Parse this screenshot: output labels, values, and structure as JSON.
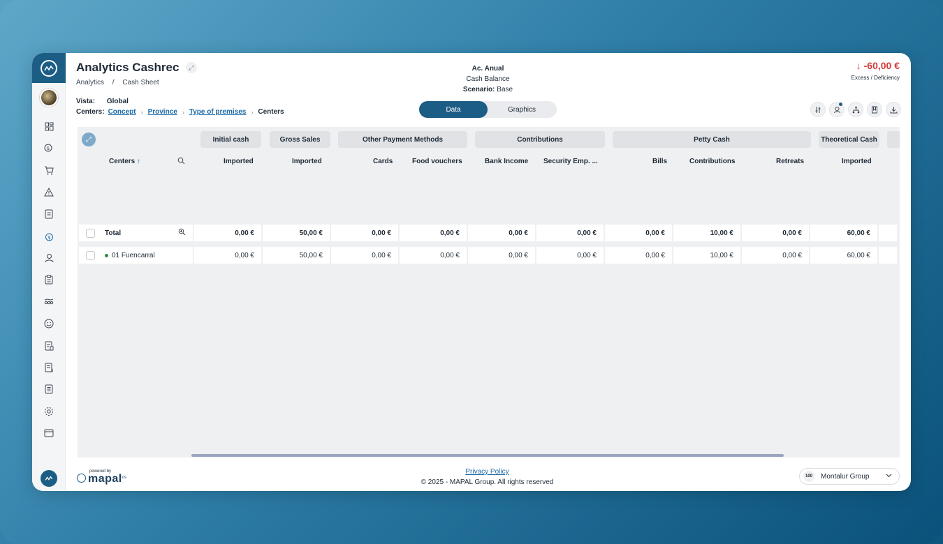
{
  "header": {
    "title": "Analytics Cashrec",
    "breadcrumb": [
      "Analytics",
      "/",
      "Cash Sheet"
    ],
    "vista_label": "Vista:",
    "vista_value": "Global",
    "centers_label": "Centers:",
    "centers_path": [
      "Concept",
      "Province",
      "Type of premises",
      "Centers"
    ],
    "info": {
      "line1": "Ac. Anual",
      "line2": "Cash Balance",
      "scenario_label": "Scenario:",
      "scenario_value": "Base"
    },
    "amount": {
      "arrow": "↓",
      "value": "-60,00 €",
      "label": "Excess / Deficiency",
      "color": "#d23a3a"
    }
  },
  "toggle": {
    "data": "Data",
    "graphics": "Graphics",
    "active": "Data"
  },
  "tools": [
    "adjust-icon",
    "user-notification-icon",
    "hierarchy-icon",
    "bookmark-icon",
    "download-icon"
  ],
  "grid": {
    "groups": [
      "Initial cash",
      "Gross Sales",
      "Other Payment Methods",
      "Contributions",
      "Petty Cash",
      "Theoretical Cash"
    ],
    "columns": [
      "Centers",
      "Imported",
      "Imported",
      "Cards",
      "Food vouchers",
      "Bank Income",
      "Security Emp. ...",
      "Bills",
      "Contributions",
      "Retreats",
      "Imported"
    ],
    "sort_arrow": "↑",
    "rows": [
      {
        "name": "Total",
        "values": [
          "0,00 €",
          "50,00 €",
          "0,00 €",
          "0,00 €",
          "0,00 €",
          "0,00 €",
          "0,00 €",
          "10,00 €",
          "0,00 €",
          "60,00 €"
        ]
      },
      {
        "name": "01 Fuencarral",
        "values": [
          "0,00 €",
          "50,00 €",
          "0,00 €",
          "0,00 €",
          "0,00 €",
          "0,00 €",
          "0,00 €",
          "10,00 €",
          "0,00 €",
          "60,00 €"
        ]
      }
    ]
  },
  "footer": {
    "powered_by": "powered by",
    "brand": "mapal",
    "brand_suffix": "os",
    "privacy": "Privacy Policy",
    "copyright": "© 2025 - MAPAL Group. All rights reserved",
    "company": "Montalur Group",
    "company_logo": "100"
  },
  "sidebar": {
    "icons": [
      "dashboard-icon",
      "finance-icon",
      "cart-icon",
      "warning-icon",
      "document-icon",
      "money-bag-icon",
      "user-icon",
      "clipboard-icon",
      "stats-icon",
      "smile-icon",
      "invoice-icon",
      "receipt-icon",
      "report-icon",
      "settings-icon",
      "card-icon"
    ]
  }
}
